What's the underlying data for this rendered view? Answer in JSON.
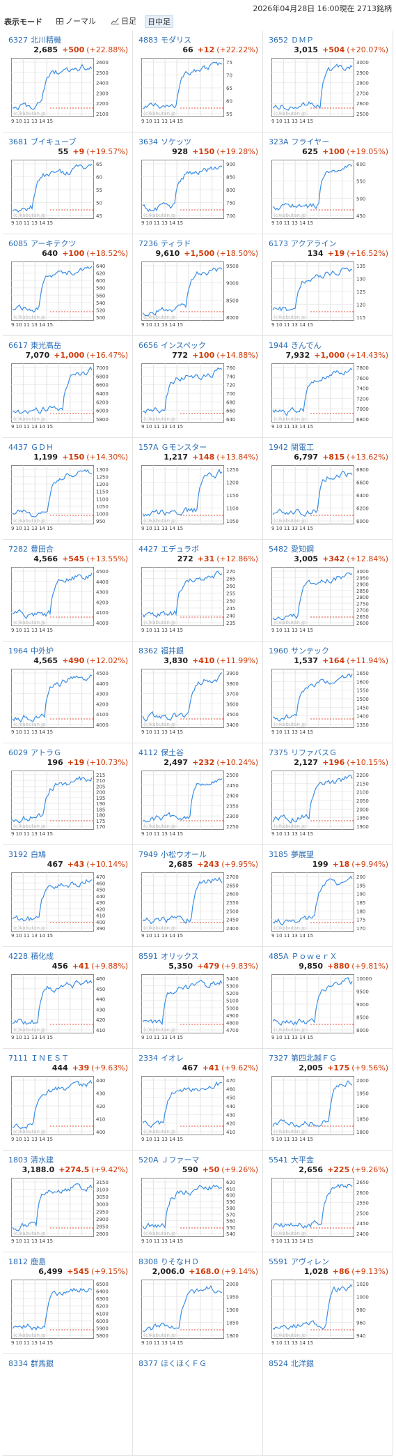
{
  "header": {
    "timestamp": "2026年04月28日 16:00現在 2713銘柄"
  },
  "mode": {
    "label": "表示モード",
    "normal": "ノーマル",
    "daily": "日足",
    "intraday": "日中足"
  },
  "x_ticks_text": "9 10 11 13 14 15",
  "watermark": "(c)kabutan.jp",
  "colors": {
    "up": "#d03b0a",
    "line": "#3a8ee6",
    "prev_close": "#e8533a",
    "link": "#2a6db5"
  },
  "stocks": [
    {
      "code": "6327",
      "name": "北川精機",
      "price": "2,685",
      "change": "+500",
      "pct": "(+22.88%)",
      "ticks": [
        "2600",
        "2500",
        "2400",
        "2300",
        "2200",
        "2100"
      ]
    },
    {
      "code": "4883",
      "name": "モダリス",
      "price": "66",
      "change": "+12",
      "pct": "(+22.22%)",
      "ticks": [
        "75",
        "70",
        "65",
        "60",
        "55"
      ]
    },
    {
      "code": "3652",
      "name": "ＤＭＰ",
      "price": "3,015",
      "change": "+504",
      "pct": "(+20.07%)",
      "ticks": [
        "3000",
        "2900",
        "2800",
        "2700",
        "2600",
        "2500"
      ]
    },
    {
      "code": "3681",
      "name": "ブイキューブ",
      "price": "55",
      "change": "+9",
      "pct": "(+19.57%)",
      "ticks": [
        "65",
        "60",
        "55",
        "50",
        "45"
      ]
    },
    {
      "code": "3634",
      "name": "ソケッツ",
      "price": "928",
      "change": "+150",
      "pct": "(+19.28%)",
      "ticks": [
        "900",
        "850",
        "800",
        "750",
        "700"
      ]
    },
    {
      "code": "323A",
      "name": "フライヤー",
      "price": "625",
      "change": "+100",
      "pct": "(+19.05%)",
      "ticks": [
        "600",
        "550",
        "500",
        "450"
      ]
    },
    {
      "code": "6085",
      "name": "アーキテクツ",
      "price": "640",
      "change": "+100",
      "pct": "(+18.52%)",
      "ticks": [
        "640",
        "620",
        "600",
        "580",
        "560",
        "540",
        "520",
        "500"
      ]
    },
    {
      "code": "7236",
      "name": "ティラド",
      "price": "9,610",
      "change": "+1,500",
      "pct": "(+18.50%)",
      "ticks": [
        "9500",
        "9000",
        "8500",
        "8000"
      ]
    },
    {
      "code": "6173",
      "name": "アクアライン",
      "price": "134",
      "change": "+19",
      "pct": "(+16.52%)",
      "ticks": [
        "135",
        "130",
        "125",
        "120",
        "115"
      ]
    },
    {
      "code": "6617",
      "name": "東光高岳",
      "price": "7,070",
      "change": "+1,000",
      "pct": "(+16.47%)",
      "ticks": [
        "7000",
        "6800",
        "6600",
        "6400",
        "6200",
        "6000",
        "5800"
      ]
    },
    {
      "code": "6656",
      "name": "インスペック",
      "price": "772",
      "change": "+100",
      "pct": "(+14.88%)",
      "ticks": [
        "760",
        "740",
        "720",
        "700",
        "680",
        "660",
        "640"
      ]
    },
    {
      "code": "1944",
      "name": "きんでん",
      "price": "7,932",
      "change": "+1,000",
      "pct": "(+14.43%)",
      "ticks": [
        "7800",
        "7600",
        "7400",
        "7200",
        "7000",
        "6800"
      ]
    },
    {
      "code": "4437",
      "name": "ＧＤＨ",
      "price": "1,199",
      "change": "+150",
      "pct": "(+14.30%)",
      "ticks": [
        "1300",
        "1250",
        "1200",
        "1150",
        "1100",
        "1050",
        "1000",
        "950"
      ]
    },
    {
      "code": "157A",
      "name": "Ｇモンスター",
      "price": "1,217",
      "change": "+148",
      "pct": "(+13.84%)",
      "ticks": [
        "1250",
        "1200",
        "1150",
        "1100",
        "1050"
      ]
    },
    {
      "code": "1942",
      "name": "関電工",
      "price": "6,797",
      "change": "+815",
      "pct": "(+13.62%)",
      "ticks": [
        "6800",
        "6600",
        "6400",
        "6200",
        "6000"
      ]
    },
    {
      "code": "7282",
      "name": "豊田合",
      "price": "4,566",
      "change": "+545",
      "pct": "(+13.55%)",
      "ticks": [
        "4500",
        "4400",
        "4300",
        "4200",
        "4100",
        "4000"
      ]
    },
    {
      "code": "4427",
      "name": "エデュラボ",
      "price": "272",
      "change": "+31",
      "pct": "(+12.86%)",
      "ticks": [
        "270",
        "265",
        "260",
        "255",
        "250",
        "245",
        "240",
        "235"
      ]
    },
    {
      "code": "5482",
      "name": "愛知鋼",
      "price": "3,005",
      "change": "+342",
      "pct": "(+12.84%)",
      "ticks": [
        "3000",
        "2950",
        "2900",
        "2850",
        "2800",
        "2750",
        "2700",
        "2650",
        "2600"
      ]
    },
    {
      "code": "1964",
      "name": "中外炉",
      "price": "4,565",
      "change": "+490",
      "pct": "(+12.02%)",
      "ticks": [
        "4500",
        "4400",
        "4300",
        "4200",
        "4100",
        "4000"
      ]
    },
    {
      "code": "8362",
      "name": "福井銀",
      "price": "3,830",
      "change": "+410",
      "pct": "(+11.99%)",
      "ticks": [
        "3900",
        "3800",
        "3700",
        "3600",
        "3500",
        "3400"
      ]
    },
    {
      "code": "1960",
      "name": "サンテック",
      "price": "1,537",
      "change": "+164",
      "pct": "(+11.94%)",
      "ticks": [
        "1650",
        "1600",
        "1550",
        "1500",
        "1450",
        "1400",
        "1350"
      ]
    },
    {
      "code": "6029",
      "name": "アトラＧ",
      "price": "196",
      "change": "+19",
      "pct": "(+10.73%)",
      "ticks": [
        "215",
        "210",
        "205",
        "200",
        "195",
        "190",
        "185",
        "180",
        "175",
        "170"
      ]
    },
    {
      "code": "4112",
      "name": "保土谷",
      "price": "2,497",
      "change": "+232",
      "pct": "(+10.24%)",
      "ticks": [
        "2500",
        "2450",
        "2400",
        "2350",
        "2300",
        "2250"
      ]
    },
    {
      "code": "7375",
      "name": "リファバスＧ",
      "price": "2,127",
      "change": "+196",
      "pct": "(+10.15%)",
      "ticks": [
        "2200",
        "2150",
        "2100",
        "2050",
        "2000",
        "1950",
        "1900"
      ]
    },
    {
      "code": "3192",
      "name": "白鳩",
      "price": "467",
      "change": "+43",
      "pct": "(+10.14%)",
      "ticks": [
        "470",
        "460",
        "450",
        "440",
        "430",
        "420",
        "410",
        "400",
        "390"
      ]
    },
    {
      "code": "7949",
      "name": "小松ウオール",
      "price": "2,685",
      "change": "+243",
      "pct": "(+9.95%)",
      "ticks": [
        "2700",
        "2650",
        "2600",
        "2550",
        "2500",
        "2450",
        "2400"
      ]
    },
    {
      "code": "3185",
      "name": "夢展望",
      "price": "199",
      "change": "+18",
      "pct": "(+9.94%)",
      "ticks": [
        "200",
        "195",
        "190",
        "185",
        "180",
        "175",
        "170"
      ]
    },
    {
      "code": "4228",
      "name": "積化成",
      "price": "456",
      "change": "+41",
      "pct": "(+9.88%)",
      "ticks": [
        "460",
        "450",
        "440",
        "430",
        "420",
        "410"
      ]
    },
    {
      "code": "8591",
      "name": "オリックス",
      "price": "5,350",
      "change": "+479",
      "pct": "(+9.83%)",
      "ticks": [
        "5400",
        "5300",
        "5200",
        "5100",
        "5000",
        "4900",
        "4800",
        "4700"
      ]
    },
    {
      "code": "485A",
      "name": "ＰｏｗｅｒＸ",
      "price": "9,850",
      "change": "+880",
      "pct": "(+9.81%)",
      "ticks": [
        "10000",
        "9500",
        "9000",
        "8500",
        "8000"
      ]
    },
    {
      "code": "7111",
      "name": "ＩＮＥＳＴ",
      "price": "444",
      "change": "+39",
      "pct": "(+9.63%)",
      "ticks": [
        "440",
        "430",
        "420",
        "410",
        "400"
      ]
    },
    {
      "code": "2334",
      "name": "イオレ",
      "price": "467",
      "change": "+41",
      "pct": "(+9.62%)",
      "ticks": [
        "470",
        "460",
        "450",
        "440",
        "430",
        "420",
        "410"
      ]
    },
    {
      "code": "7327",
      "name": "第四北越ＦＧ",
      "price": "2,005",
      "change": "+175",
      "pct": "(+9.56%)",
      "ticks": [
        "2000",
        "1950",
        "1900",
        "1850",
        "1800"
      ]
    },
    {
      "code": "1803",
      "name": "清水建",
      "price": "3,188.0",
      "change": "+274.5",
      "pct": "(+9.42%)",
      "ticks": [
        "3150",
        "3100",
        "3050",
        "3000",
        "2950",
        "2900",
        "2850",
        "2800"
      ]
    },
    {
      "code": "520A",
      "name": "Ｊファーマ",
      "price": "590",
      "change": "+50",
      "pct": "(+9.26%)",
      "ticks": [
        "620",
        "610",
        "600",
        "590",
        "580",
        "570",
        "560",
        "550",
        "540"
      ]
    },
    {
      "code": "5541",
      "name": "大平金",
      "price": "2,656",
      "change": "+225",
      "pct": "(+9.26%)",
      "ticks": [
        "2650",
        "2600",
        "2550",
        "2500",
        "2450",
        "2400"
      ]
    },
    {
      "code": "1812",
      "name": "鹿島",
      "price": "6,499",
      "change": "+545",
      "pct": "(+9.15%)",
      "ticks": [
        "6500",
        "6400",
        "6300",
        "6200",
        "6100",
        "6000",
        "5900",
        "5800"
      ]
    },
    {
      "code": "8308",
      "name": "りそなＨＤ",
      "price": "2,006.0",
      "change": "+168.0",
      "pct": "(+9.14%)",
      "ticks": [
        "2000",
        "1950",
        "1900",
        "1850",
        "1800"
      ]
    },
    {
      "code": "5591",
      "name": "アヴィレン",
      "price": "1,028",
      "change": "+86",
      "pct": "(+9.13%)",
      "ticks": [
        "1020",
        "1000",
        "980",
        "960",
        "940"
      ]
    },
    {
      "code": "8334",
      "name": "群馬銀",
      "price": "",
      "change": "",
      "pct": "",
      "ticks": []
    },
    {
      "code": "8377",
      "name": "ほくほくＦＧ",
      "price": "",
      "change": "",
      "pct": "",
      "ticks": []
    },
    {
      "code": "8524",
      "name": "北洋銀",
      "price": "",
      "change": "",
      "pct": "",
      "ticks": []
    }
  ]
}
